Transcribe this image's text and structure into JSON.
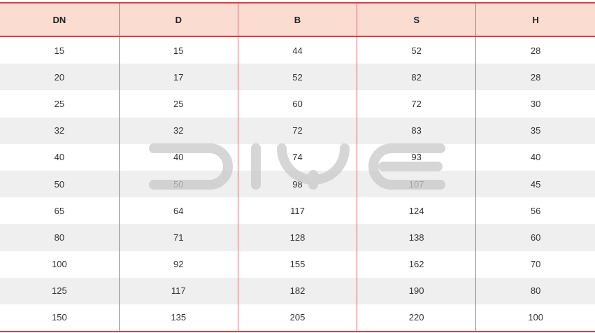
{
  "table": {
    "headers": [
      "DN",
      "D",
      "B",
      "S",
      "H"
    ],
    "rows": [
      [
        "15",
        "15",
        "44",
        "52",
        "28"
      ],
      [
        "20",
        "17",
        "52",
        "82",
        "28"
      ],
      [
        "25",
        "25",
        "60",
        "72",
        "30"
      ],
      [
        "32",
        "32",
        "72",
        "83",
        "35"
      ],
      [
        "40",
        "40",
        "74",
        "93",
        "40"
      ],
      [
        "50",
        "50",
        "98",
        "107",
        "45"
      ],
      [
        "65",
        "64",
        "117",
        "124",
        "56"
      ],
      [
        "80",
        "71",
        "128",
        "138",
        "60"
      ],
      [
        "100",
        "92",
        "155",
        "162",
        "70"
      ],
      [
        "125",
        "117",
        "182",
        "190",
        "80"
      ],
      [
        "150",
        "135",
        "205",
        "220",
        "100"
      ]
    ]
  },
  "colors": {
    "border": "#e23a46",
    "header_bg": "#fbdcd0",
    "stripe": "#efefef"
  },
  "watermark": "DIYE"
}
